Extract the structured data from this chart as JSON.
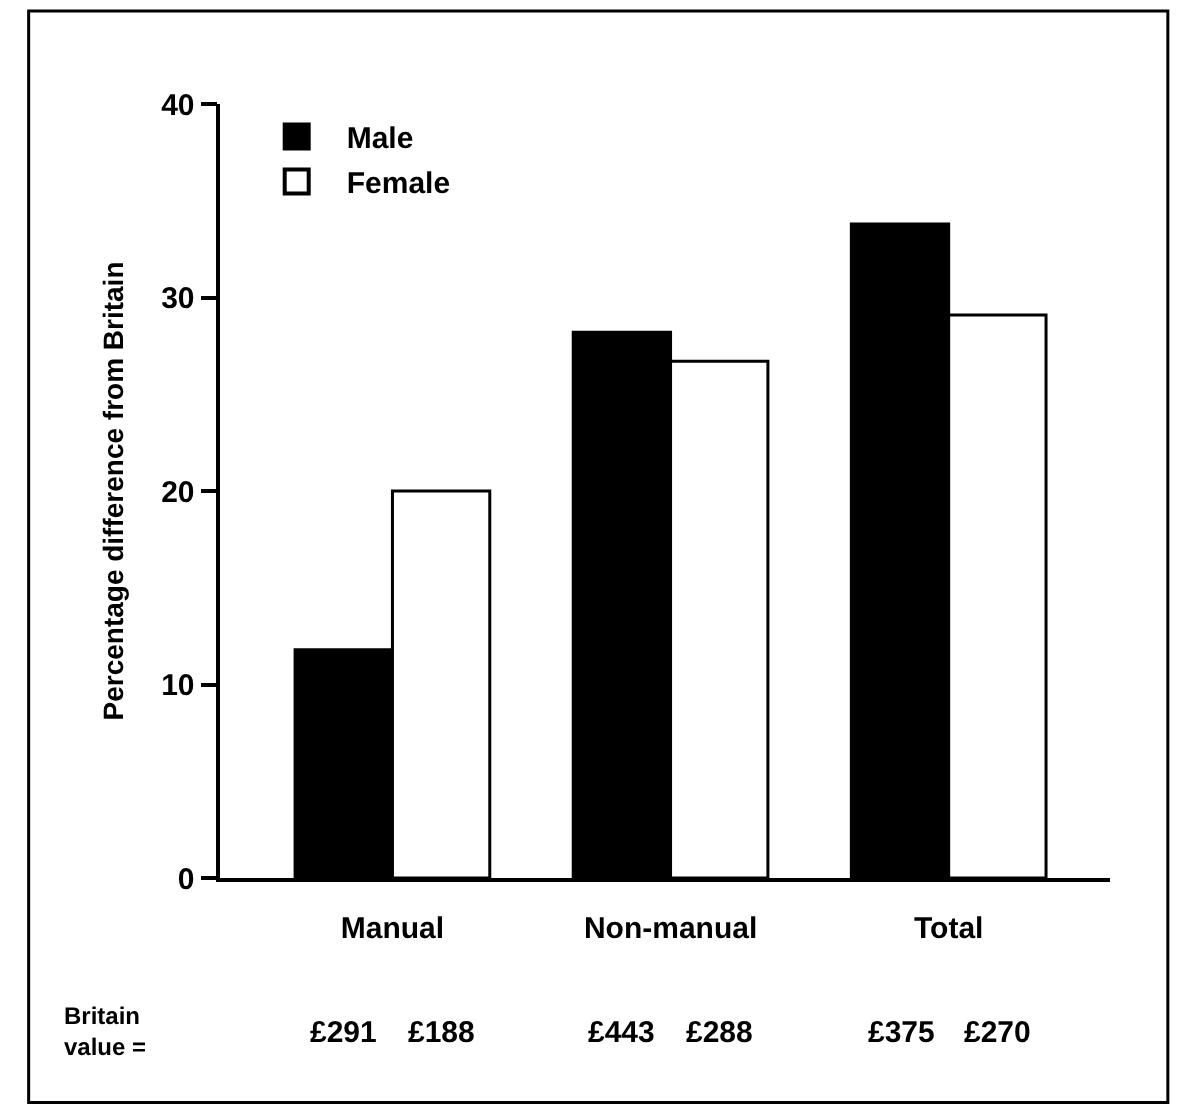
{
  "chart_data": {
    "type": "bar",
    "ylabel": "Percentage difference from Britain",
    "categories": [
      "Manual",
      "Non-manual",
      "Total"
    ],
    "series": [
      {
        "name": "Male",
        "color": "#000000",
        "values": [
          11.8,
          28.2,
          33.8
        ]
      },
      {
        "name": "Female",
        "color": "#ffffff",
        "values": [
          20.0,
          26.7,
          29.1
        ]
      }
    ],
    "ylim": [
      0,
      40
    ],
    "yticks": [
      0,
      10,
      20,
      30,
      40
    ],
    "legend": "top left",
    "annotations": [
      "Britain\nvalue =",
      "£291",
      "£188",
      "£443",
      "£288",
      "£375",
      "£270"
    ]
  }
}
